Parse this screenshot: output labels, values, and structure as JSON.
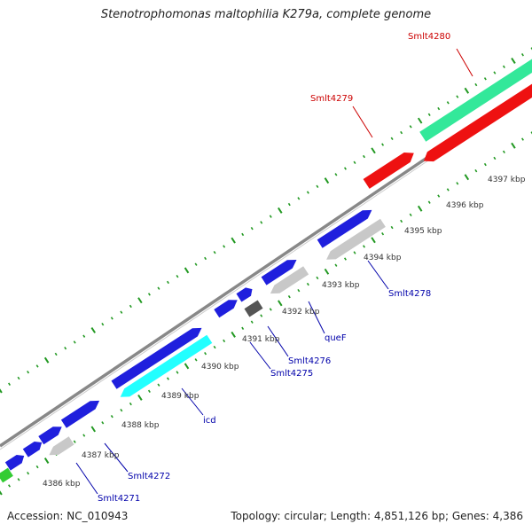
{
  "title": "Stenotrophomonas maltophilia K279a, complete genome",
  "footer": {
    "accession": "Accession: NC_010943",
    "summary": "Topology: circular; Length: 4,851,126 bp; Genes: 4,386"
  },
  "colors": {
    "forward_gene": "#1f1fdd",
    "reverse_gene": "#c8c8c8",
    "pseudo_gene": "#555555",
    "rna_red": "#ee1111",
    "rna_green": "#33e89a",
    "cyan_gene": "#22ffff",
    "green_gene": "#33cc33",
    "label_blue": "#0000aa",
    "label_red": "#cc0000",
    "tick_green": "#229922",
    "backbone": "#888888"
  },
  "ticks": [
    {
      "label": "4386 kbp"
    },
    {
      "label": "4387 kbp"
    },
    {
      "label": "4388 kbp"
    },
    {
      "label": "4389 kbp"
    },
    {
      "label": "4390 kbp"
    },
    {
      "label": "4391 kbp"
    },
    {
      "label": "4392 kbp"
    },
    {
      "label": "4393 kbp"
    },
    {
      "label": "4394 kbp"
    },
    {
      "label": "4395 kbp"
    },
    {
      "label": "4396 kbp"
    },
    {
      "label": "4397 kbp"
    }
  ],
  "gene_labels": [
    {
      "name": "Smlt4271",
      "color": "label_blue"
    },
    {
      "name": "Smlt4272",
      "color": "label_blue"
    },
    {
      "name": "icd",
      "color": "label_blue"
    },
    {
      "name": "Smlt4275",
      "color": "label_blue"
    },
    {
      "name": "Smlt4276",
      "color": "label_blue"
    },
    {
      "name": "queF",
      "color": "label_blue"
    },
    {
      "name": "Smlt4278",
      "color": "label_blue"
    },
    {
      "name": "Smlt4279",
      "color": "label_red"
    },
    {
      "name": "Smlt4280",
      "color": "label_red"
    }
  ]
}
